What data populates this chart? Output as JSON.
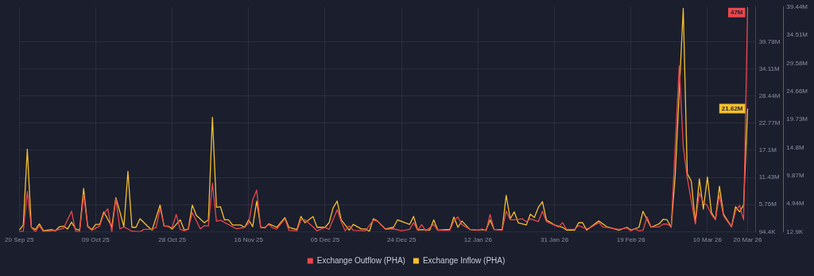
{
  "chart_data": {
    "type": "line",
    "legend": "bottom",
    "grid": true,
    "xlim": [
      "2025-09-20",
      "2026-03-22"
    ],
    "xticks": [
      {
        "value": "2025-09-20",
        "label": "20 Sep 25"
      },
      {
        "value": "2025-10-09",
        "label": "09 Oct 25"
      },
      {
        "value": "2025-10-28",
        "label": "28 Oct 25"
      },
      {
        "value": "2025-11-16",
        "label": "16 Nov 25"
      },
      {
        "value": "2025-12-05",
        "label": "05 Dec 25"
      },
      {
        "value": "2025-12-24",
        "label": "24 Dec 25"
      },
      {
        "value": "2026-01-12",
        "label": "12 Jan 26"
      },
      {
        "value": "2026-01-31",
        "label": "31 Jan 26"
      },
      {
        "value": "2026-02-19",
        "label": "19 Feb 26"
      },
      {
        "value": "2026-03-10",
        "label": "10 Mar 26"
      },
      {
        "value": "2026-03-20",
        "label": "20 Mar 26"
      }
    ],
    "ylim": [
      94400,
      47000000
    ],
    "yticks": [
      {
        "value": 94400,
        "label": "94.4K"
      },
      {
        "value": 5760000,
        "label": "5.76M"
      },
      {
        "value": 11430000,
        "label": "11.43M"
      },
      {
        "value": 17100000,
        "label": "17.1M"
      },
      {
        "value": 22770000,
        "label": "22.77M"
      },
      {
        "value": 28440000,
        "label": "28.44M"
      },
      {
        "value": 34110000,
        "label": "34.11M"
      },
      {
        "value": 39780000,
        "label": "39.78M"
      }
    ],
    "y2lim": [
      12900,
      39440000
    ],
    "y2ticks": [
      {
        "value": 12900,
        "label": "12.9K"
      },
      {
        "value": 4940000,
        "label": "4.94M"
      },
      {
        "value": 9870000,
        "label": "9.87M"
      },
      {
        "value": 14800000,
        "label": "14.8M"
      },
      {
        "value": 19730000,
        "label": "19.73M"
      },
      {
        "value": 24660000,
        "label": "24.66M"
      },
      {
        "value": 29580000,
        "label": "29.58M"
      },
      {
        "value": 34510000,
        "label": "34.51M"
      },
      {
        "value": 39440000,
        "label": "39.44M"
      }
    ],
    "series": [
      {
        "name": "Exchange Outflow (PHA)",
        "color": "#e8474d",
        "axis": "y",
        "x": [
          "2025-09-20",
          "2025-09-21",
          "2025-09-22",
          "2025-09-23",
          "2025-09-24",
          "2025-09-25",
          "2025-09-26",
          "2025-09-29",
          "2025-10-01",
          "2025-10-03",
          "2025-10-04",
          "2025-10-05",
          "2025-10-06",
          "2025-10-07",
          "2025-10-08",
          "2025-10-10",
          "2025-10-11",
          "2025-10-12",
          "2025-10-13",
          "2025-10-14",
          "2025-10-15",
          "2025-10-16",
          "2025-10-17",
          "2025-10-18",
          "2025-10-20",
          "2025-10-21",
          "2025-10-23",
          "2025-10-24",
          "2025-10-25",
          "2025-10-26",
          "2025-10-28",
          "2025-10-29",
          "2025-10-30",
          "2025-10-31",
          "2025-11-01",
          "2025-11-02",
          "2025-11-04",
          "2025-11-05",
          "2025-11-06",
          "2025-11-07",
          "2025-11-08",
          "2025-11-09",
          "2025-11-11",
          "2025-11-13",
          "2025-11-15",
          "2025-11-16",
          "2025-11-17",
          "2025-11-18",
          "2025-11-19",
          "2025-11-20",
          "2025-11-21",
          "2025-11-22",
          "2025-11-23",
          "2025-11-25",
          "2025-11-26",
          "2025-11-28",
          "2025-11-29",
          "2025-11-30",
          "2025-12-02",
          "2025-12-03",
          "2025-12-05",
          "2025-12-06",
          "2025-12-08",
          "2025-12-09",
          "2025-12-10",
          "2025-12-11",
          "2025-12-12",
          "2025-12-15",
          "2025-12-17",
          "2025-12-18",
          "2025-12-20",
          "2025-12-22",
          "2025-12-24",
          "2025-12-26",
          "2025-12-27",
          "2025-12-28",
          "2025-12-29",
          "2025-12-30",
          "2026-01-01",
          "2026-01-02",
          "2026-01-05",
          "2026-01-06",
          "2026-01-07",
          "2026-01-08",
          "2026-01-10",
          "2026-01-12",
          "2026-01-13",
          "2026-01-14",
          "2026-01-15",
          "2026-01-16",
          "2026-01-18",
          "2026-01-19",
          "2026-01-20",
          "2026-01-21",
          "2026-01-23",
          "2026-01-24",
          "2026-01-25",
          "2026-01-27",
          "2026-01-28",
          "2026-01-29",
          "2026-02-01",
          "2026-02-02",
          "2026-02-03",
          "2026-02-05",
          "2026-02-06",
          "2026-02-07",
          "2026-02-08",
          "2026-02-09",
          "2026-02-11",
          "2026-02-12",
          "2026-02-13",
          "2026-02-16",
          "2026-02-18",
          "2026-02-19",
          "2026-02-20",
          "2026-02-21",
          "2026-02-22",
          "2026-02-23",
          "2026-02-24",
          "2026-02-26",
          "2026-02-27",
          "2026-02-28",
          "2026-03-01",
          "2026-03-03",
          "2026-03-04",
          "2026-03-05",
          "2026-03-07",
          "2026-03-08",
          "2026-03-09",
          "2026-03-10",
          "2026-03-11",
          "2026-03-12",
          "2026-03-13",
          "2026-03-14",
          "2026-03-16",
          "2026-03-17",
          "2026-03-18",
          "2026-03-19",
          "2026-03-20"
        ],
        "values": [
          100000,
          200000,
          8500000,
          1000000,
          100000,
          1400000,
          100000,
          400000,
          800000,
          4400000,
          200000,
          100000,
          7800000,
          1100000,
          400000,
          1300000,
          3800000,
          4900000,
          100000,
          7000000,
          700000,
          1100000,
          700000,
          200000,
          100000,
          600000,
          600000,
          1000000,
          5000000,
          1300000,
          1000000,
          3700000,
          600000,
          300000,
          600000,
          4100000,
          700000,
          1400000,
          1300000,
          10200000,
          2300000,
          2500000,
          1600000,
          700000,
          1000000,
          1900000,
          6700000,
          8800000,
          1000000,
          1000000,
          1600000,
          900000,
          700000,
          2800000,
          400000,
          300000,
          2600000,
          2600000,
          1100000,
          300000,
          1000000,
          600000,
          4700000,
          2200000,
          300000,
          1300000,
          400000,
          300000,
          2500000,
          2300000,
          600000,
          700000,
          300000,
          600000,
          2000000,
          400000,
          1600000,
          300000,
          1600000,
          400000,
          400000,
          2300000,
          3200000,
          1600000,
          600000,
          400000,
          700000,
          300000,
          3700000,
          600000,
          400000,
          4400000,
          2600000,
          2600000,
          2800000,
          2200000,
          2800000,
          2200000,
          4400000,
          2200000,
          1100000,
          2000000,
          600000,
          600000,
          1400000,
          1000000,
          700000,
          1000000,
          2000000,
          1100000,
          1000000,
          600000,
          900000,
          300000,
          700000,
          300000,
          400000,
          3200000,
          1100000,
          1100000,
          1700000,
          1700000,
          1100000,
          34700000,
          17900000,
          11400000,
          1700000,
          8200000,
          6200000,
          5500000,
          3700000,
          2600000,
          7700000,
          3400000,
          1100000,
          4400000,
          5600000,
          2600000,
          47000000
        ],
        "value_labels": [
          null,
          null,
          null,
          null,
          null,
          null,
          null,
          null,
          null,
          null,
          null,
          null,
          null,
          null,
          null,
          null,
          null,
          null,
          null,
          null,
          null,
          null,
          null,
          null,
          null,
          null,
          null,
          null,
          null,
          null,
          null,
          null,
          null,
          null,
          null,
          null,
          null,
          null,
          null,
          null,
          null,
          null,
          null,
          null,
          null,
          null,
          null,
          null,
          null,
          null,
          null,
          null,
          null,
          null,
          null,
          null,
          null,
          null,
          null,
          null,
          null,
          null,
          null,
          null,
          null,
          null,
          null,
          null,
          null,
          null,
          null,
          null,
          null,
          null,
          null,
          null,
          null,
          null,
          null,
          null,
          null,
          null,
          null,
          null,
          null,
          null,
          null,
          null,
          null,
          null,
          null,
          null,
          null,
          null,
          null,
          null,
          null,
          null,
          null,
          null,
          null,
          null,
          null,
          null,
          null,
          null,
          null,
          null,
          null,
          null,
          null,
          null,
          null,
          null,
          null,
          null,
          null,
          null,
          null,
          null,
          null,
          null,
          null,
          null,
          null,
          null,
          null,
          null,
          null,
          null,
          null,
          null,
          null,
          null,
          null,
          null,
          null,
          null,
          "47M"
        ]
      },
      {
        "name": "Exchange Inflow (PHA)",
        "color": "#f5c02e",
        "axis": "y2",
        "x": [
          "2025-09-20",
          "2025-09-21",
          "2025-09-22",
          "2025-09-23",
          "2025-09-24",
          "2025-09-25",
          "2025-09-26",
          "2025-09-28",
          "2025-09-29",
          "2025-09-30",
          "2025-10-01",
          "2025-10-02",
          "2025-10-03",
          "2025-10-04",
          "2025-10-05",
          "2025-10-06",
          "2025-10-07",
          "2025-10-08",
          "2025-10-09",
          "2025-10-10",
          "2025-10-11",
          "2025-10-12",
          "2025-10-13",
          "2025-10-14",
          "2025-10-15",
          "2025-10-16",
          "2025-10-17",
          "2025-10-18",
          "2025-10-19",
          "2025-10-20",
          "2025-10-22",
          "2025-10-23",
          "2025-10-25",
          "2025-10-26",
          "2025-10-27",
          "2025-10-28",
          "2025-10-30",
          "2025-10-31",
          "2025-11-01",
          "2025-11-02",
          "2025-11-03",
          "2025-11-05",
          "2025-11-06",
          "2025-11-07",
          "2025-11-08",
          "2025-11-09",
          "2025-11-10",
          "2025-11-11",
          "2025-11-12",
          "2025-11-14",
          "2025-11-15",
          "2025-11-16",
          "2025-11-17",
          "2025-11-18",
          "2025-11-19",
          "2025-11-20",
          "2025-11-21",
          "2025-11-23",
          "2025-11-25",
          "2025-11-26",
          "2025-11-28",
          "2025-11-29",
          "2025-11-30",
          "2025-12-02",
          "2025-12-03",
          "2025-12-05",
          "2025-12-06",
          "2025-12-07",
          "2025-12-08",
          "2025-12-09",
          "2025-12-11",
          "2025-12-12",
          "2025-12-14",
          "2025-12-15",
          "2025-12-16",
          "2025-12-17",
          "2025-12-18",
          "2025-12-20",
          "2025-12-22",
          "2025-12-23",
          "2025-12-26",
          "2025-12-27",
          "2025-12-28",
          "2025-12-29",
          "2025-12-31",
          "2026-01-01",
          "2026-01-02",
          "2026-01-04",
          "2026-01-05",
          "2026-01-06",
          "2026-01-07",
          "2026-01-08",
          "2026-01-10",
          "2026-01-12",
          "2026-01-13",
          "2026-01-14",
          "2026-01-15",
          "2026-01-16",
          "2026-01-18",
          "2026-01-19",
          "2026-01-20",
          "2026-01-21",
          "2026-01-22",
          "2026-01-24",
          "2026-01-25",
          "2026-01-26",
          "2026-01-27",
          "2026-01-28",
          "2026-01-29",
          "2026-01-31",
          "2026-02-02",
          "2026-02-03",
          "2026-02-05",
          "2026-02-06",
          "2026-02-07",
          "2026-02-08",
          "2026-02-11",
          "2026-02-13",
          "2026-02-15",
          "2026-02-16",
          "2026-02-18",
          "2026-02-19",
          "2026-02-21",
          "2026-02-22",
          "2026-02-24",
          "2026-02-26",
          "2026-02-27",
          "2026-02-28",
          "2026-03-01",
          "2026-03-02",
          "2026-03-03",
          "2026-03-04",
          "2026-03-05",
          "2026-03-06",
          "2026-03-07",
          "2026-03-08",
          "2026-03-09",
          "2026-03-10",
          "2026-03-11",
          "2026-03-12",
          "2026-03-13",
          "2026-03-14",
          "2026-03-16",
          "2026-03-17",
          "2026-03-18",
          "2026-03-19",
          "2026-03-20"
        ],
        "values": [
          300000,
          1200000,
          14500000,
          800000,
          400000,
          1400000,
          200000,
          400000,
          200000,
          900000,
          1000000,
          500000,
          1700000,
          500000,
          300000,
          7600000,
          1000000,
          400000,
          1300000,
          1300000,
          3500000,
          2200000,
          900000,
          6000000,
          3500000,
          900000,
          10600000,
          800000,
          800000,
          2300000,
          900000,
          300000,
          4700000,
          1000000,
          1000000,
          500000,
          2100000,
          300000,
          500000,
          4700000,
          2900000,
          1600000,
          2100000,
          20100000,
          4300000,
          4400000,
          2100000,
          2100000,
          1200000,
          1200000,
          800000,
          2100000,
          900000,
          5400000,
          800000,
          700000,
          1400000,
          800000,
          2500000,
          800000,
          400000,
          2700000,
          1600000,
          2700000,
          800000,
          800000,
          1600000,
          4200000,
          5400000,
          2100000,
          300000,
          1300000,
          500000,
          500000,
          100000,
          2300000,
          1900000,
          500000,
          800000,
          2100000,
          1300000,
          2700000,
          300000,
          400000,
          300000,
          2100000,
          300000,
          400000,
          400000,
          2600000,
          800000,
          1900000,
          400000,
          300000,
          400000,
          300000,
          2100000,
          400000,
          400000,
          6400000,
          2300000,
          3500000,
          1600000,
          1200000,
          3100000,
          2500000,
          4300000,
          5300000,
          2100000,
          1200000,
          800000,
          300000,
          300000,
          1600000,
          1600000,
          300000,
          1900000,
          900000,
          500000,
          300000,
          800000,
          300000,
          800000,
          3600000,
          800000,
          1400000,
          2200000,
          2100000,
          800000,
          9900000,
          24500000,
          39200000,
          10200000,
          8900000,
          1600000,
          9300000,
          4000000,
          9600000,
          3400000,
          2200000,
          8000000,
          3100000,
          900000,
          4400000,
          3500000,
          4700000,
          21620000
        ],
        "value_labels": [
          null,
          null,
          null,
          null,
          null,
          null,
          null,
          null,
          null,
          null,
          null,
          null,
          null,
          null,
          null,
          null,
          null,
          null,
          null,
          null,
          null,
          null,
          null,
          null,
          null,
          null,
          null,
          null,
          null,
          null,
          null,
          null,
          null,
          null,
          null,
          null,
          null,
          null,
          null,
          null,
          null,
          null,
          null,
          null,
          null,
          null,
          null,
          null,
          null,
          null,
          null,
          null,
          null,
          null,
          null,
          null,
          null,
          null,
          null,
          null,
          null,
          null,
          null,
          null,
          null,
          null,
          null,
          null,
          null,
          null,
          null,
          null,
          null,
          null,
          null,
          null,
          null,
          null,
          null,
          null,
          null,
          null,
          null,
          null,
          null,
          null,
          null,
          null,
          null,
          null,
          null,
          null,
          null,
          null,
          null,
          null,
          null,
          null,
          null,
          null,
          null,
          null,
          null,
          null,
          null,
          null,
          null,
          null,
          null,
          null,
          null,
          null,
          null,
          null,
          null,
          null,
          null,
          null,
          null,
          null,
          null,
          null,
          null,
          null,
          null,
          null,
          null,
          null,
          null,
          null,
          null,
          null,
          null,
          null,
          null,
          null,
          null,
          null,
          null,
          null,
          null,
          null,
          null,
          null,
          null,
          null,
          "21.62M"
        ]
      }
    ]
  }
}
